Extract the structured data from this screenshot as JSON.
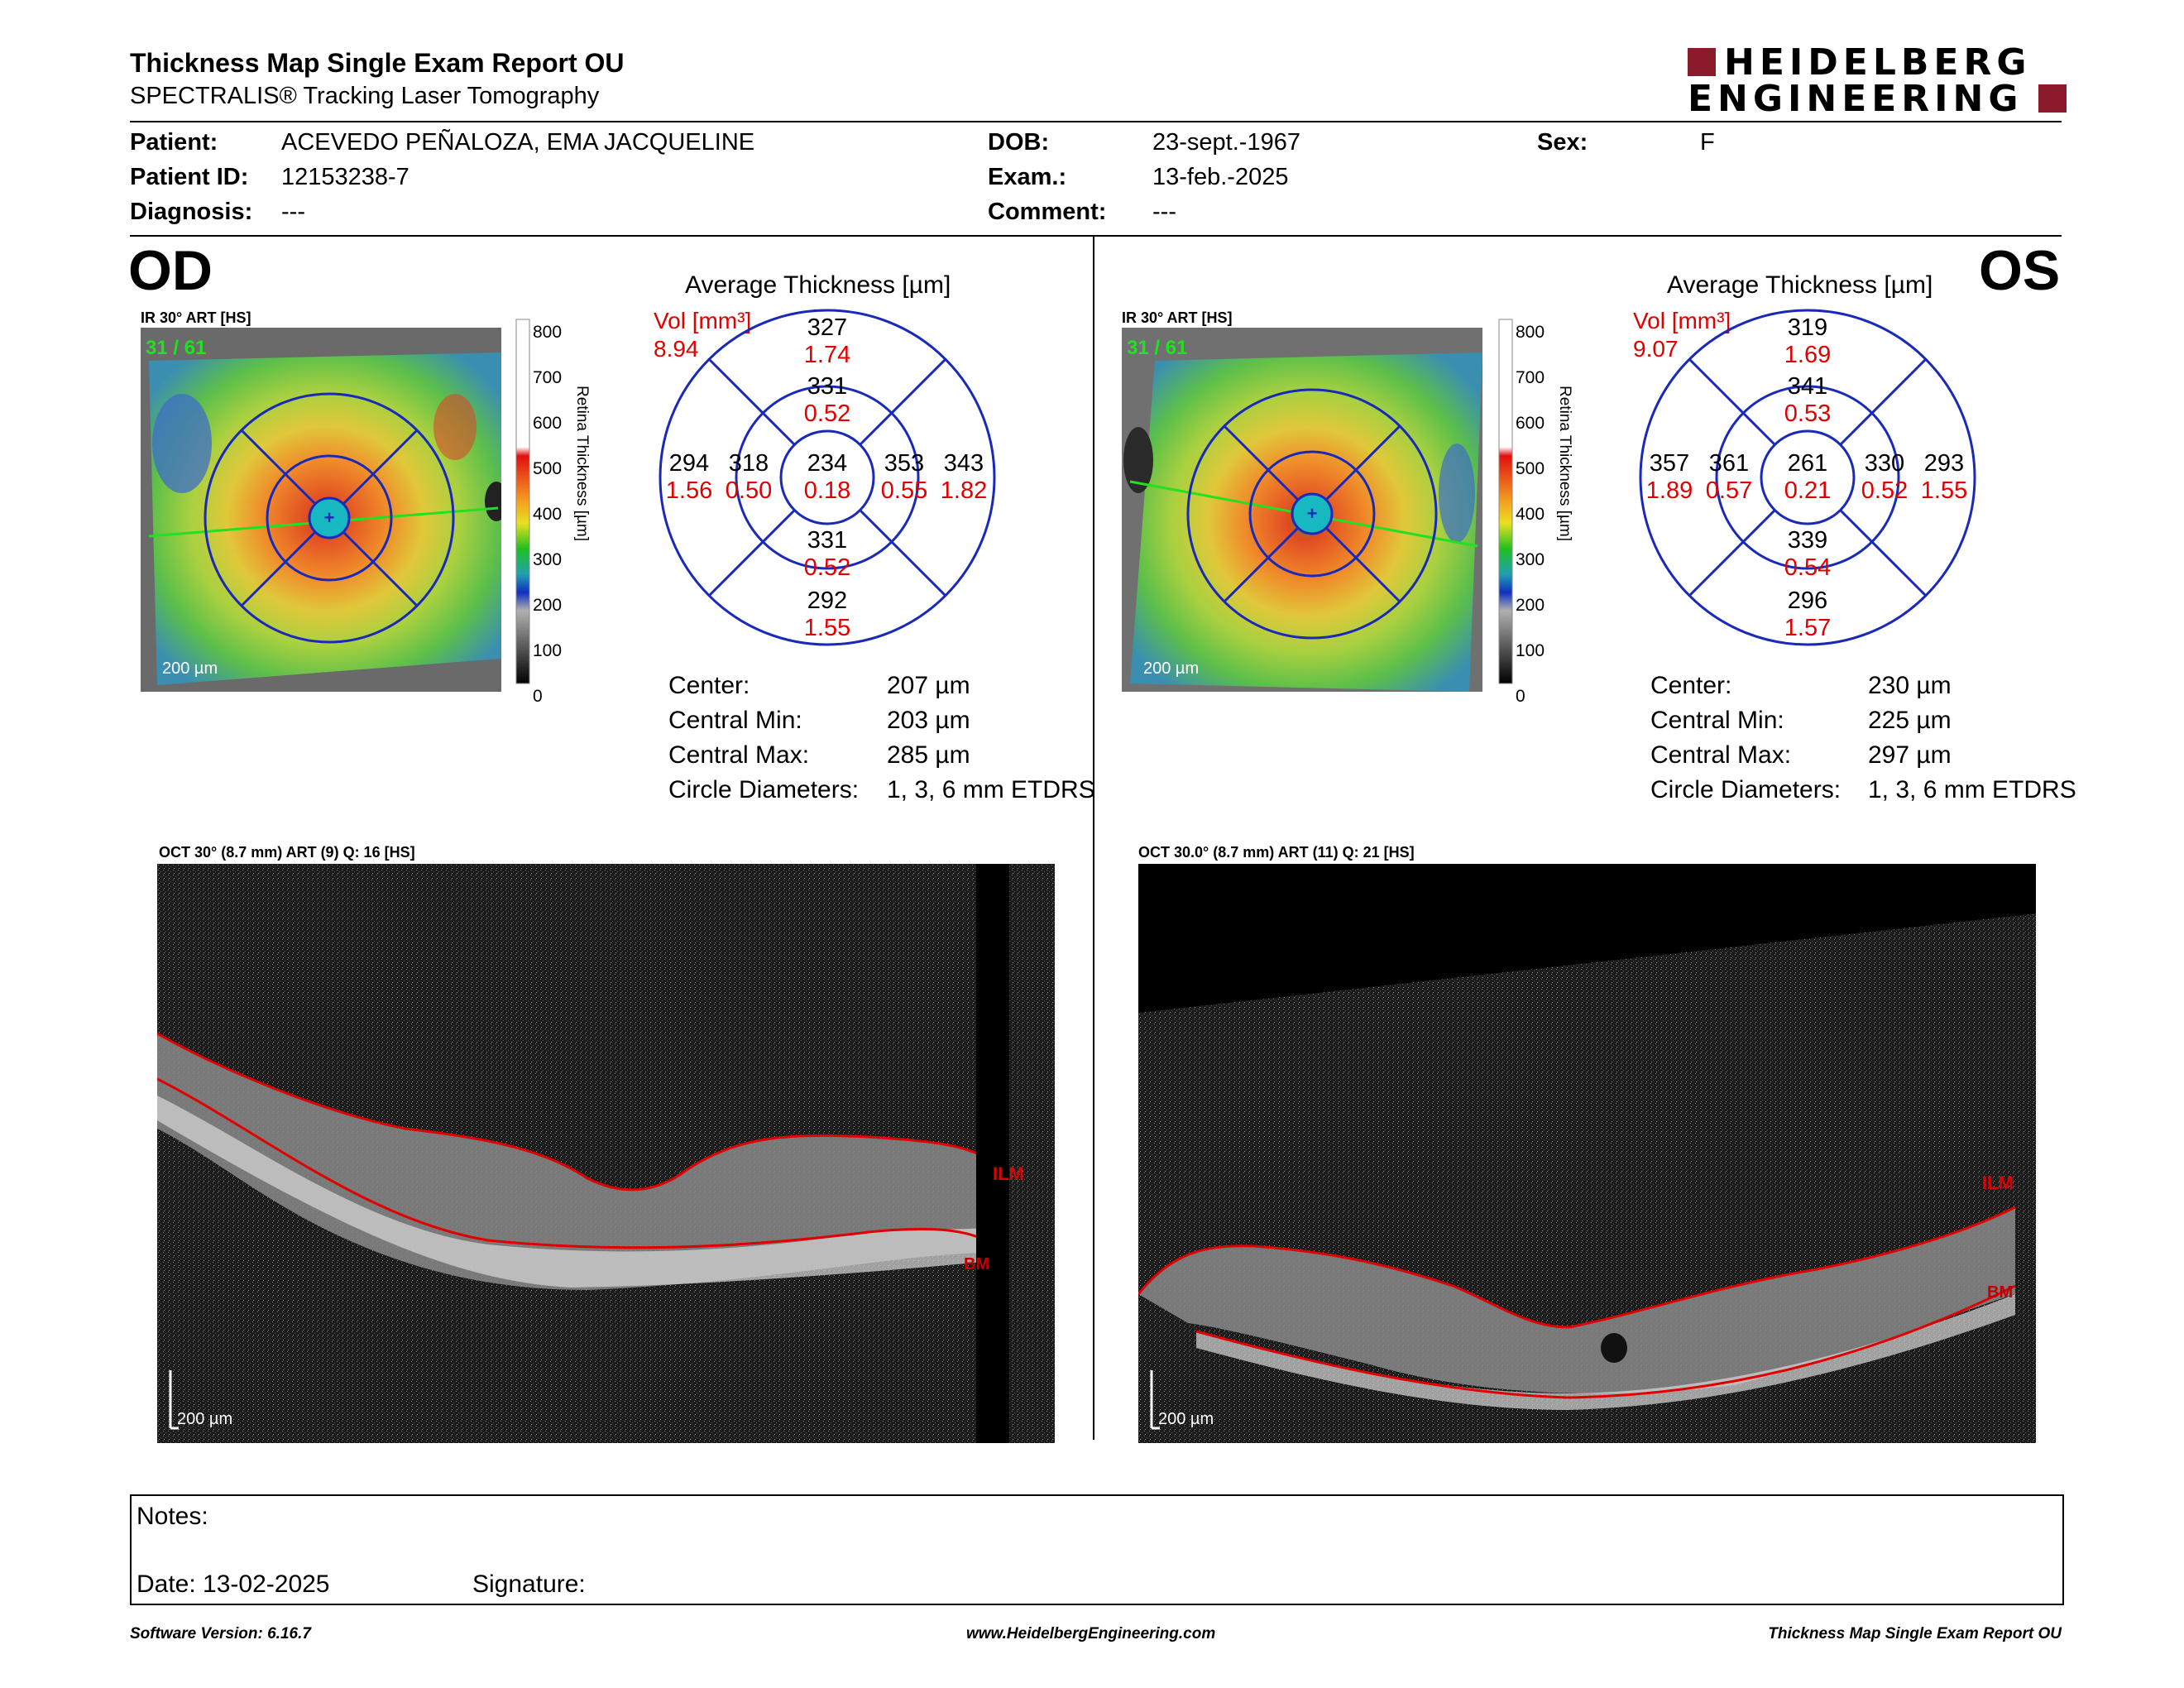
{
  "header": {
    "title": "Thickness Map Single Exam Report OU",
    "subtitle": "SPECTRALIS® Tracking Laser Tomography",
    "logo_line1": "HEIDELBERG",
    "logo_line2": "ENGINEERING",
    "brand_color": "#8b1a2b"
  },
  "patient": {
    "patient_label": "Patient:",
    "patient_value": "ACEVEDO PEÑALOZA, EMA JACQUELINE",
    "id_label": "Patient ID:",
    "id_value": "12153238-7",
    "diagnosis_label": "Diagnosis:",
    "diagnosis_value": "---",
    "dob_label": "DOB:",
    "dob_value": "23-sept.-1967",
    "exam_label": "Exam.:",
    "exam_value": "13-feb.-2025",
    "comment_label": "Comment:",
    "comment_value": "---",
    "sex_label": "Sex:",
    "sex_value": "F"
  },
  "colorbar": {
    "ticks": [
      "800",
      "700",
      "600",
      "500",
      "400",
      "300",
      "200",
      "100",
      "0"
    ],
    "label": "Retina Thickness [µm]"
  },
  "od": {
    "eye_label": "OD",
    "ir_caption": "IR 30° ART [HS]",
    "frame": "31 / 61",
    "scale": "200 µm",
    "avg_title": "Average Thickness [µm]",
    "vol_label": "Vol [mm³]",
    "vol_value": "8.94",
    "sectors": {
      "outer_top": [
        "327",
        "1.74"
      ],
      "inner_top": [
        "331",
        "0.52"
      ],
      "outer_left": [
        "294",
        "1.56"
      ],
      "inner_left": [
        "318",
        "0.50"
      ],
      "center": [
        "234",
        "0.18"
      ],
      "inner_right": [
        "353",
        "0.55"
      ],
      "outer_right": [
        "343",
        "1.82"
      ],
      "inner_bottom": [
        "331",
        "0.52"
      ],
      "outer_bottom": [
        "292",
        "1.55"
      ]
    },
    "stats": [
      {
        "label": "Center:",
        "value": "207 µm"
      },
      {
        "label": "Central Min:",
        "value": "203 µm"
      },
      {
        "label": "Central Max:",
        "value": "285 µm"
      },
      {
        "label": "Circle Diameters:",
        "value": "1, 3, 6 mm ETDRS"
      }
    ],
    "oct_caption": "OCT 30° (8.7 mm) ART (9) Q: 16 [HS]",
    "ilm": "ILM",
    "bm": "BM",
    "oct_scale": "200 µm"
  },
  "os": {
    "eye_label": "OS",
    "ir_caption": "IR 30° ART [HS]",
    "frame": "31 / 61",
    "scale": "200 µm",
    "avg_title": "Average Thickness [µm]",
    "vol_label": "Vol [mm³]",
    "vol_value": "9.07",
    "sectors": {
      "outer_top": [
        "319",
        "1.69"
      ],
      "inner_top": [
        "341",
        "0.53"
      ],
      "outer_left": [
        "357",
        "1.89"
      ],
      "inner_left": [
        "361",
        "0.57"
      ],
      "center": [
        "261",
        "0.21"
      ],
      "inner_right": [
        "330",
        "0.52"
      ],
      "outer_right": [
        "293",
        "1.55"
      ],
      "inner_bottom": [
        "339",
        "0.54"
      ],
      "outer_bottom": [
        "296",
        "1.57"
      ]
    },
    "stats": [
      {
        "label": "Center:",
        "value": "230 µm"
      },
      {
        "label": "Central Min:",
        "value": "225 µm"
      },
      {
        "label": "Central Max:",
        "value": "297 µm"
      },
      {
        "label": "Circle Diameters:",
        "value": "1, 3, 6 mm ETDRS"
      }
    ],
    "oct_caption": "OCT 30.0° (8.7 mm) ART (11) Q: 21 [HS]",
    "ilm": "ILM",
    "bm": "BM",
    "oct_scale": "200 µm"
  },
  "notes": {
    "notes_label": "Notes:",
    "date_label": "Date: 13-02-2025",
    "signature_label": "Signature:"
  },
  "footer": {
    "version": "Software Version: 6.16.7",
    "url": "www.HeidelbergEngineering.com",
    "report": "Thickness Map Single Exam Report OU"
  }
}
